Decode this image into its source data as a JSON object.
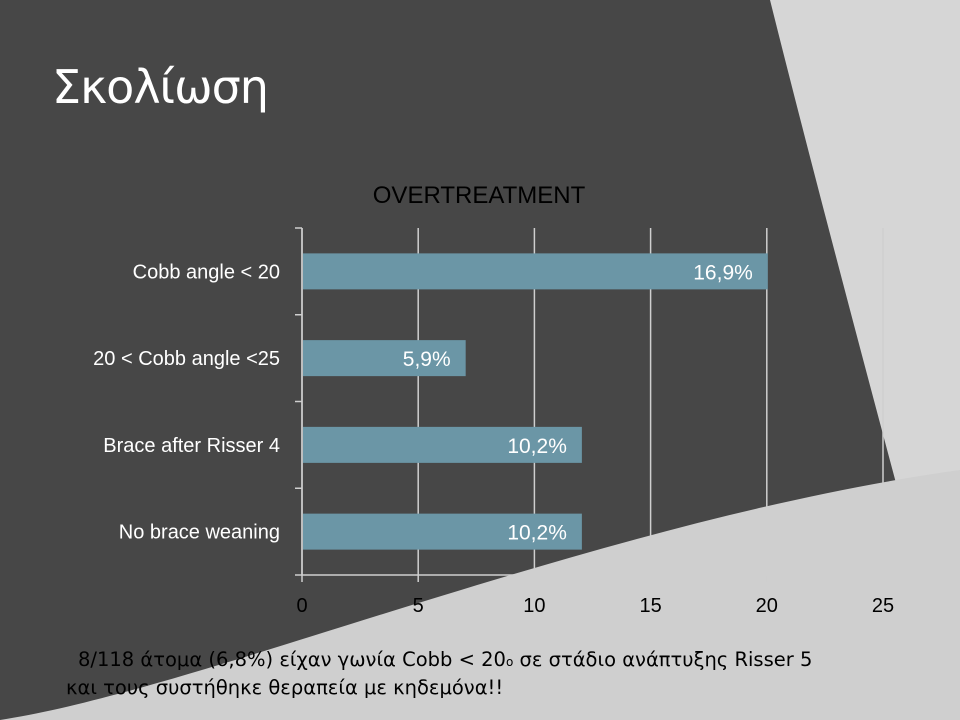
{
  "slide": {
    "title": "Σκολίωση",
    "footnote_line1_before": "8/118 άτομα (6,8%) είχαν γωνία Cobb < 20",
    "footnote_sup": "ο",
    "footnote_line1_after": " σε στάδιο ανάπτυξης Risser 5",
    "footnote_line2": "και τους συστήθηκε θεραπεία με κηδεμόνα!!"
  },
  "colors": {
    "background": "#474747",
    "accent_light": "#cfcfcf",
    "bar": "#6b96a6",
    "text_dark": "#000000"
  },
  "chart_data": {
    "type": "bar",
    "orientation": "horizontal",
    "title": "OVERTREATMENT",
    "categories": [
      "Cobb angle < 20",
      "20 < Cobb angle <25",
      "Brace after Risser 4",
      "No brace weaning"
    ],
    "values": [
      20,
      7,
      12,
      12
    ],
    "data_labels": [
      "16,9%",
      "5,9%",
      "10,2%",
      "10,2%"
    ],
    "xlim": [
      0,
      25
    ],
    "xticks": [
      "0",
      "5",
      "10",
      "15",
      "20",
      "25"
    ],
    "grid": true,
    "legend": "none"
  }
}
